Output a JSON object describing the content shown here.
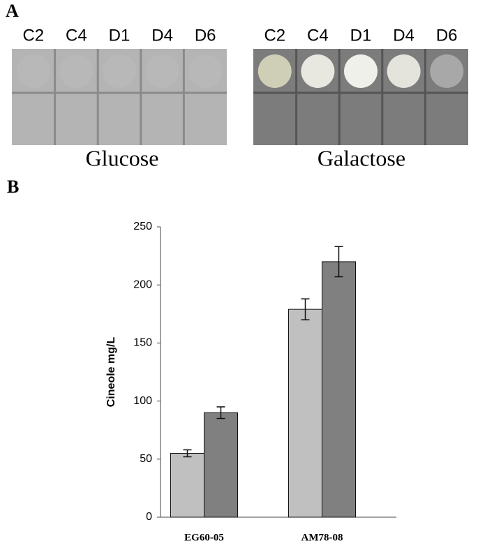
{
  "panel_a": {
    "label": "A",
    "left": {
      "columns": [
        "C2",
        "C4",
        "D1",
        "D4",
        "D6"
      ],
      "caption": "Glucose"
    },
    "right": {
      "columns": [
        "C2",
        "C4",
        "D1",
        "D4",
        "D6"
      ],
      "caption": "Galactose"
    }
  },
  "chart_data": {
    "type": "bar",
    "panel_label": "B",
    "y_label": "Cineole mg/L",
    "categories": [
      "EG60-05",
      "AM78-08"
    ],
    "series": [
      {
        "color": "#c0c0c0",
        "values": [
          55,
          179
        ],
        "errors": [
          3,
          9
        ]
      },
      {
        "color": "#808080",
        "values": [
          90,
          220
        ],
        "errors": [
          5,
          13
        ]
      }
    ],
    "ylim": [
      0,
      250
    ],
    "yticks": [
      0,
      50,
      100,
      150,
      200,
      250
    ]
  }
}
